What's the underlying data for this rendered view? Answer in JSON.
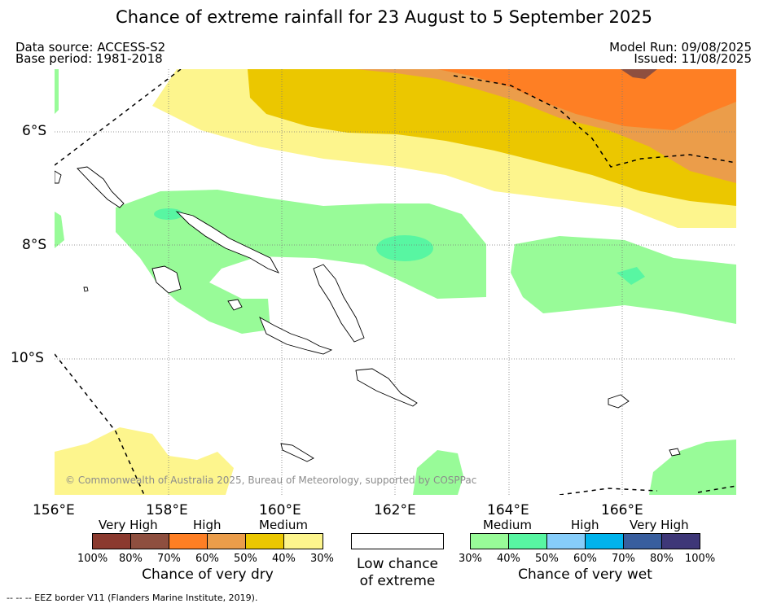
{
  "title": "Chance of extreme rainfall for 23 August to 5 September 2025",
  "header": {
    "data_source": "Data source: ACCESS-S2",
    "base_period": "Base period: 1981-2018",
    "model_run": "Model Run: 09/08/2025",
    "issued": "Issued: 11/08/2025"
  },
  "map": {
    "lon_labels": [
      "156°E",
      "158°E",
      "160°E",
      "162°E",
      "164°E",
      "166°E"
    ],
    "lat_labels": [
      "6°S",
      "8°S",
      "10°S"
    ],
    "copyright": "© Commonwealth of Australia 2025, Bureau of Meteorology, supported by COSPPac"
  },
  "legend": {
    "dry": {
      "categories": [
        "Very High",
        "High",
        "Medium"
      ],
      "percent_labels": [
        "100%",
        "80%",
        "70%",
        "60%",
        "50%",
        "40%",
        "30%"
      ],
      "colors": [
        "#8b3a2f",
        "#8e4f3f",
        "#fe7f24",
        "#eb9d4a",
        "#ebc700",
        "#fdf58d"
      ],
      "caption": "Chance of very dry"
    },
    "low": {
      "caption_line1": "Low chance",
      "caption_line2": "of extreme",
      "color": "#ffffff"
    },
    "wet": {
      "categories": [
        "Medium",
        "High",
        "Very High"
      ],
      "percent_labels": [
        "30%",
        "40%",
        "50%",
        "60%",
        "70%",
        "80%",
        "100%"
      ],
      "colors": [
        "#98fb98",
        "#58f6a2",
        "#86cdfa",
        "#00b3ec",
        "#385e9e",
        "#3e3778"
      ],
      "caption": "Chance of very wet"
    }
  },
  "footer": "--  --  -- EEZ border V11 (Flanders Marine Institute, 2019)."
}
